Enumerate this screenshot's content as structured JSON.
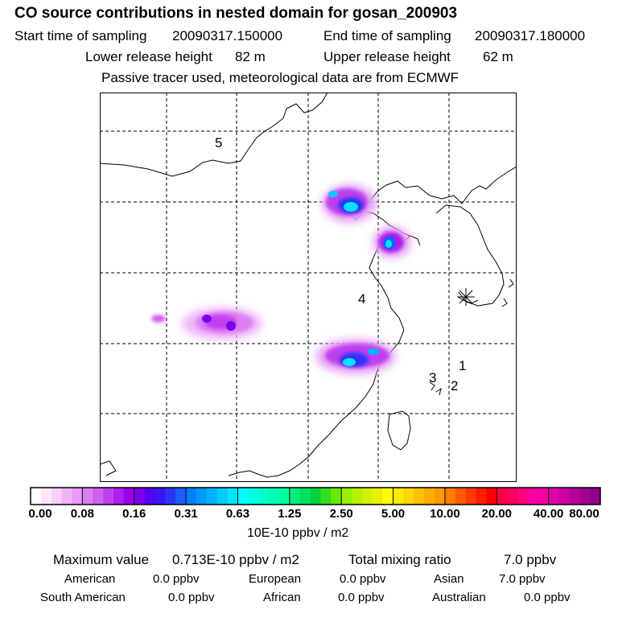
{
  "header": {
    "title": "CO  source contributions in nested domain for gosan_200903",
    "start_label": "Start time of sampling",
    "start_value": "20090317.150000",
    "end_label": "End time of sampling",
    "end_value": "20090317.180000",
    "lower_label": "Lower release height",
    "lower_value": "82 m",
    "upper_label": "Upper release height",
    "upper_value": "62 m",
    "passive_note": "Passive tracer used, meteorological data are from ECMWF"
  },
  "map": {
    "region_labels": [
      "1",
      "2",
      "3",
      "4",
      "5"
    ],
    "receptor_marker": "asterisk-marker"
  },
  "colorbar": {
    "ticks": [
      "0.00",
      "0.08",
      "0.16",
      "0.31",
      "0.63",
      "1.25",
      "2.50",
      "5.00",
      "10.00",
      "20.00",
      "40.00",
      "80.00"
    ],
    "units": "10E-10 ppbv / m2",
    "colors": [
      [
        "#ffffff",
        "#fbe8fd",
        "#f6cffb",
        "#f0b4f9",
        "#e99af6"
      ],
      [
        "#dc7ff3",
        "#cf61f0",
        "#c040ee",
        "#ae1feb",
        "#9a00ea"
      ],
      [
        "#7a00ec",
        "#5800f0",
        "#3a14f4",
        "#2a36f6",
        "#1c5cf8"
      ],
      [
        "#0080ff",
        "#0098ff",
        "#00b2ff",
        "#00cbff",
        "#00e4ff"
      ],
      [
        "#00ffff",
        "#00ffe6",
        "#00ffcc",
        "#00ffb2",
        "#00ff99"
      ],
      [
        "#00ee7a",
        "#00e060",
        "#00d23f",
        "#30dd20",
        "#68e800"
      ],
      [
        "#96f000",
        "#b4f000",
        "#d0f000",
        "#e8f000",
        "#ffff00"
      ],
      [
        "#ffe800",
        "#ffd400",
        "#ffc000",
        "#ffac00",
        "#ff9900"
      ],
      [
        "#ff7a00",
        "#ff5a00",
        "#ff3a00",
        "#ff1a00",
        "#ff0000"
      ],
      [
        "#ff0040",
        "#ff0060",
        "#ff0080",
        "#ff00a0",
        "#f200a8"
      ],
      [
        "#e000a8",
        "#cc00a0",
        "#b80098",
        "#a40090",
        "#900088"
      ]
    ]
  },
  "summary": {
    "max_label": "Maximum value",
    "max_value": "0.713E-10 ppbv / m2",
    "total_label": "Total mixing ratio",
    "total_value": "7.0 ppbv",
    "american_label": "American",
    "american_value": "0.0 ppbv",
    "european_label": "European",
    "european_value": "0.0 ppbv",
    "asian_label": "Asian",
    "asian_value": "7.0 ppbv",
    "south_american_label": "South American",
    "south_american_value": "0.0 ppbv",
    "african_label": "African",
    "african_value": "0.0 ppbv",
    "australian_label": "Australian",
    "australian_value": "0.0 ppbv"
  }
}
